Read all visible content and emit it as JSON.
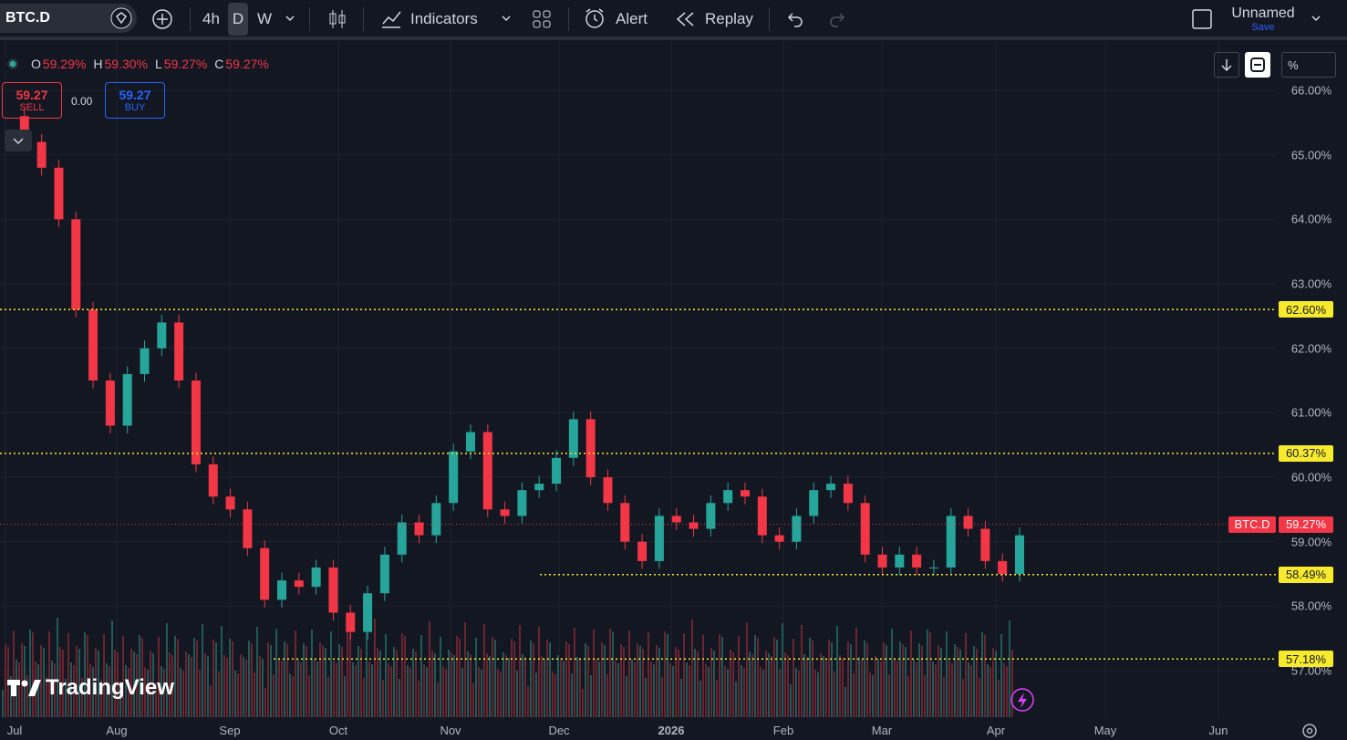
{
  "toolbar": {
    "symbol": "BTC.D",
    "intervals": [
      "4h",
      "D",
      "W"
    ],
    "indicators": "Indicators",
    "alert": "Alert",
    "replay": "Replay",
    "layout_name": "Unnamed",
    "save": "Save"
  },
  "legend": {
    "o_label": "O",
    "o": "59.29%",
    "h_label": "H",
    "h": "59.30%",
    "l_label": "L",
    "l": "59.27%",
    "c_label": "C",
    "c": "59.27%"
  },
  "trade": {
    "sell_price": "59.27",
    "sell_label": "SELL",
    "spread": "0.00",
    "buy_price": "59.27",
    "buy_label": "BUY"
  },
  "scale": {
    "mode": "%"
  },
  "watermark": "TradingView",
  "colors": {
    "up": "#26a69a",
    "down": "#f23645",
    "level": "#f7ea2d",
    "bg": "#131722"
  },
  "chart_data": {
    "type": "candlestick",
    "y_ticks": [
      "66.00%",
      "65.00%",
      "64.00%",
      "63.00%",
      "62.00%",
      "61.00%",
      "60.00%",
      "59.00%",
      "58.00%",
      "57.00%"
    ],
    "ylim": [
      56.9,
      66.2
    ],
    "x_ticks": [
      "Jul",
      "Aug",
      "Sep",
      "Oct",
      "Nov",
      "Dec",
      "2026",
      "Feb",
      "Mar",
      "Apr",
      "May",
      "Jun"
    ],
    "levels": [
      {
        "label": "62.60%",
        "value": 62.6
      },
      {
        "label": "60.37%",
        "value": 60.37
      },
      {
        "label": "58.49%",
        "value": 58.49
      },
      {
        "label": "57.18%",
        "value": 57.18
      }
    ],
    "last_price": {
      "symbol": "BTC.D",
      "label": "59.27%",
      "value": 59.27
    },
    "close_series": [
      65.6,
      65.2,
      64.8,
      64.0,
      62.6,
      61.5,
      60.8,
      61.6,
      62.0,
      62.4,
      61.5,
      60.2,
      59.7,
      59.5,
      58.9,
      58.1,
      58.4,
      58.3,
      58.6,
      57.9,
      57.6,
      58.2,
      58.8,
      59.3,
      59.1,
      59.6,
      60.4,
      60.7,
      59.5,
      59.4,
      59.8,
      59.9,
      60.3,
      60.9,
      60.0,
      59.6,
      59.0,
      58.7,
      59.4,
      59.3,
      59.2,
      59.6,
      59.8,
      59.7,
      59.1,
      59.0,
      59.4,
      59.8,
      59.9,
      59.6,
      58.8,
      58.6,
      58.8,
      58.6,
      58.6,
      59.4,
      59.2,
      58.7,
      58.5,
      59.1
    ]
  }
}
